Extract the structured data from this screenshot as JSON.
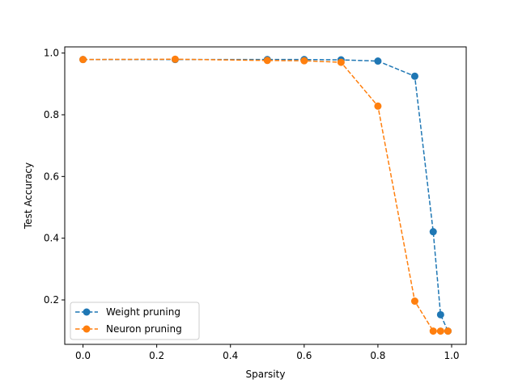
{
  "chart_data": {
    "type": "line",
    "title": "",
    "xlabel": "Sparsity",
    "ylabel": "Test Accuracy",
    "xlim": [
      -0.0495,
      1.0395
    ],
    "ylim": [
      0.056,
      1.02
    ],
    "xticks": [
      0.0,
      0.2,
      0.4,
      0.6,
      0.8,
      1.0
    ],
    "xtick_labels": [
      "0.0",
      "0.2",
      "0.4",
      "0.6",
      "0.8",
      "1.0"
    ],
    "yticks": [
      0.2,
      0.4,
      0.6,
      0.8,
      1.0
    ],
    "ytick_labels": [
      "0.2",
      "0.4",
      "0.6",
      "0.8",
      "1.0"
    ],
    "grid": false,
    "legend_position": "lower-left",
    "series": [
      {
        "name": "Weight pruning",
        "color": "#1f77b4",
        "linestyle": "dashed",
        "marker": "circle",
        "x": [
          0.0,
          0.25,
          0.5,
          0.6,
          0.7,
          0.8,
          0.9,
          0.95,
          0.97,
          0.99
        ],
        "y": [
          0.979,
          0.979,
          0.979,
          0.979,
          0.978,
          0.974,
          0.925,
          0.421,
          0.152,
          0.099
        ]
      },
      {
        "name": "Neuron pruning",
        "color": "#ff7f0e",
        "linestyle": "dashed",
        "marker": "circle",
        "x": [
          0.0,
          0.25,
          0.5,
          0.6,
          0.7,
          0.8,
          0.9,
          0.95,
          0.97,
          0.99
        ],
        "y": [
          0.979,
          0.98,
          0.976,
          0.975,
          0.97,
          0.828,
          0.196,
          0.099,
          0.099,
          0.099
        ]
      }
    ]
  }
}
